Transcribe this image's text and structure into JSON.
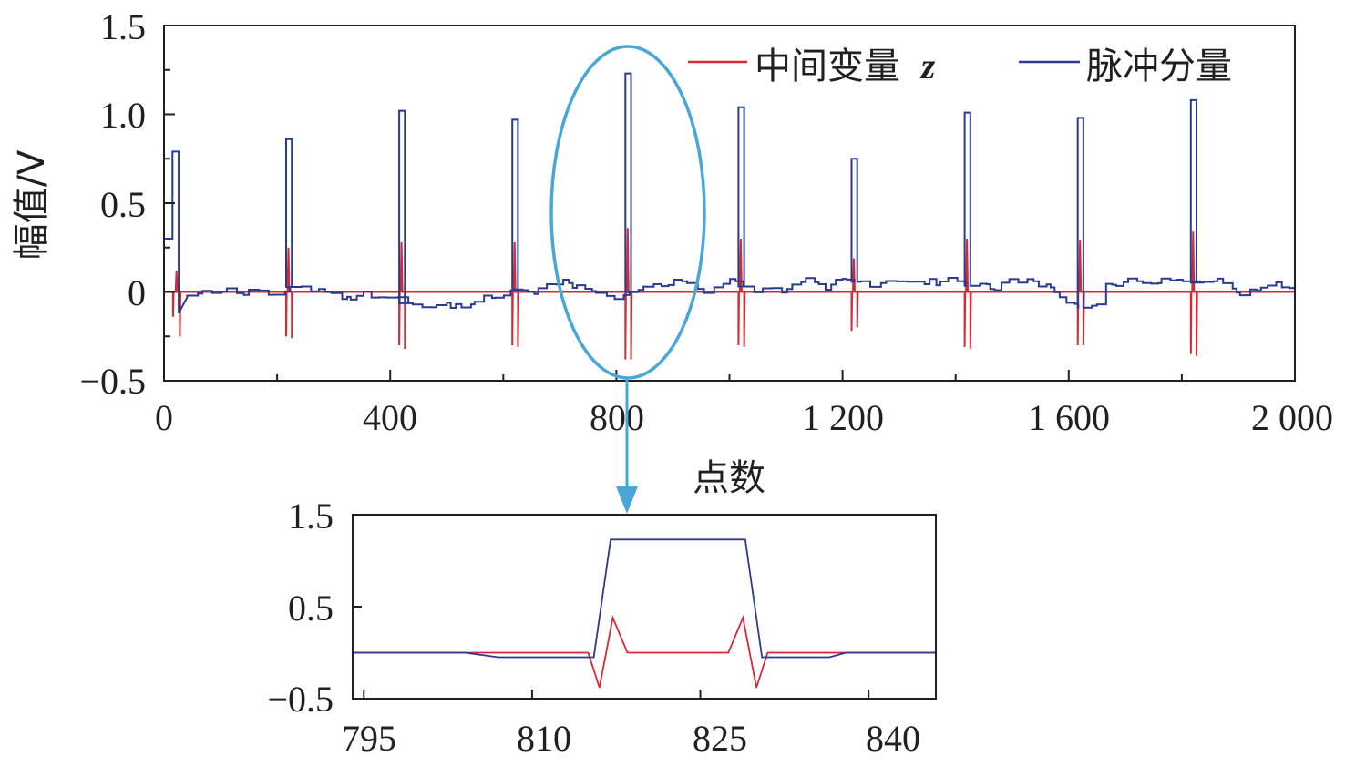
{
  "colors": {
    "intermediate": "#d42a36",
    "pulse": "#2a3a8f",
    "highlight": "#49a6d6",
    "axis": "#231f20"
  },
  "chart_data": [
    {
      "type": "line",
      "ylabel": "幅值/V",
      "xlabel": "点数",
      "xlim": [
        0,
        2000
      ],
      "ylim": [
        -0.5,
        1.5
      ],
      "x_ticks": [
        "0",
        "400",
        "800",
        "1 200",
        "1 600",
        "2 000"
      ],
      "y_ticks": [
        "1.5",
        "1.0",
        "0.5",
        "0",
        "−0.5"
      ],
      "legend_position": "top-right",
      "legend": {
        "intermediate_label": "中间变量",
        "intermediate_symbol": "z",
        "pulse_label": "脉冲分量"
      },
      "pulse_positions": [
        22,
        220,
        420,
        620,
        820,
        1020,
        1220,
        1420,
        1620,
        1820
      ],
      "series": [
        {
          "name": "中间变量 z",
          "spikes": [
            {
              "x": 22,
              "pre": 0.12,
              "down1": -0.14,
              "down2": -0.25
            },
            {
              "x": 220,
              "pre": 0.25,
              "down1": -0.25,
              "down2": -0.26
            },
            {
              "x": 420,
              "pre": 0.28,
              "down1": -0.3,
              "down2": -0.32
            },
            {
              "x": 620,
              "pre": 0.28,
              "down1": -0.3,
              "down2": -0.31
            },
            {
              "x": 820,
              "pre": 0.36,
              "down1": -0.38,
              "down2": -0.38
            },
            {
              "x": 1020,
              "pre": 0.3,
              "down1": -0.3,
              "down2": -0.31
            },
            {
              "x": 1220,
              "pre": 0.19,
              "down1": -0.22,
              "down2": -0.2
            },
            {
              "x": 1420,
              "pre": 0.3,
              "down1": -0.31,
              "down2": -0.32
            },
            {
              "x": 1620,
              "pre": 0.29,
              "down1": -0.3,
              "down2": -0.3
            },
            {
              "x": 1820,
              "pre": 0.34,
              "down1": -0.35,
              "down2": -0.36
            }
          ]
        },
        {
          "name": "脉冲分量",
          "pulse_heights": [
            0.79,
            0.86,
            1.02,
            0.97,
            1.23,
            1.04,
            0.75,
            1.01,
            0.98,
            1.08
          ]
        }
      ]
    },
    {
      "type": "line",
      "xlim": [
        794,
        846
      ],
      "ylim": [
        -0.5,
        1.5
      ],
      "x_ticks": [
        "795",
        "810",
        "825",
        "840"
      ],
      "y_ticks": [
        "1.5",
        "0.5",
        "−0.5"
      ],
      "series": [
        {
          "name": "中间变量 z",
          "points": [
            [
              794,
              0
            ],
            [
              815,
              0
            ],
            [
              816,
              -0.38
            ],
            [
              817.2,
              0.38
            ],
            [
              818.5,
              0
            ],
            [
              827.5,
              0
            ],
            [
              828.8,
              0.38
            ],
            [
              830,
              -0.38
            ],
            [
              831,
              0
            ],
            [
              846,
              0
            ]
          ]
        },
        {
          "name": "脉冲分量",
          "points": [
            [
              794,
              0
            ],
            [
              804,
              0
            ],
            [
              807,
              -0.05
            ],
            [
              815.5,
              -0.05
            ],
            [
              817,
              1.23
            ],
            [
              829,
              1.23
            ],
            [
              830.5,
              -0.05
            ],
            [
              836.5,
              -0.05
            ],
            [
              838,
              0
            ],
            [
              846,
              0
            ]
          ]
        }
      ]
    }
  ]
}
